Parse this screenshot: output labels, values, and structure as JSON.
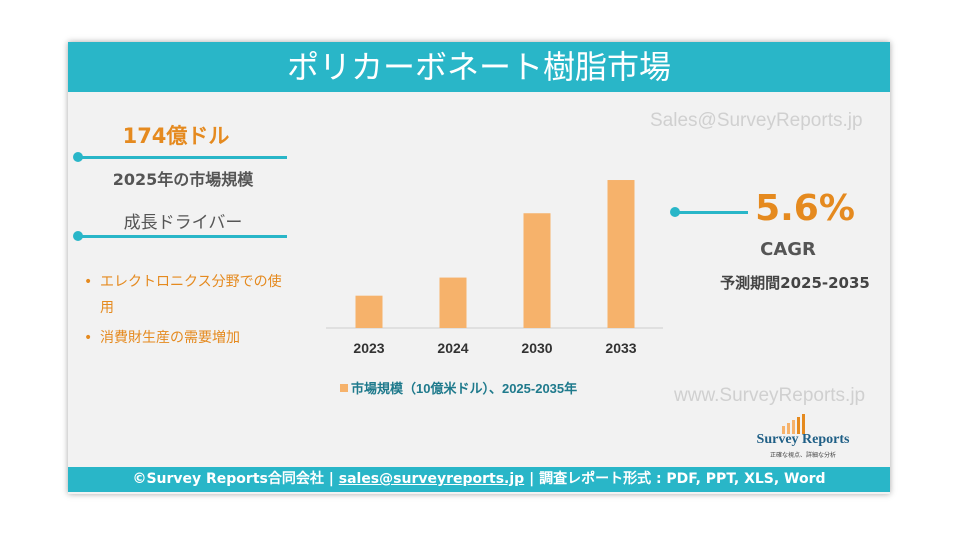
{
  "header": {
    "title": "ポリカーボネート樹脂市場"
  },
  "left": {
    "market_size": "174億ドル",
    "market_size_label": "2025年の市場規模",
    "drivers_title": "成長ドライバー",
    "drivers": [
      "エレクトロニクス分野での使用",
      "消費財生産の需要増加"
    ]
  },
  "chart_data": {
    "type": "bar",
    "categories": [
      "2023",
      "2024",
      "2030",
      "2033"
    ],
    "series": [
      {
        "name": "市場規模（10億米ドル）、2025-2035年",
        "color": "#f6b26b",
        "values": [
          10.7,
          16.7,
          38,
          49
        ]
      }
    ],
    "ylim": [
      0,
      50
    ]
  },
  "right": {
    "cagr_value": "5.6%",
    "cagr_label": "CAGR",
    "period": "予測期間2025-2035"
  },
  "watermarks": [
    "Sales@SurveyReports.jp",
    "www.SurveyReports.jp"
  ],
  "logo": {
    "name": "Survey Reports",
    "tagline": "正確な視点、詳細な分析"
  },
  "footer": {
    "company": "©Survey Reports合同会社 |",
    "email": "sales@surveyreports.jp",
    "formats": "|  調査レポート形式 : PDF, PPT, XLS, Word"
  }
}
